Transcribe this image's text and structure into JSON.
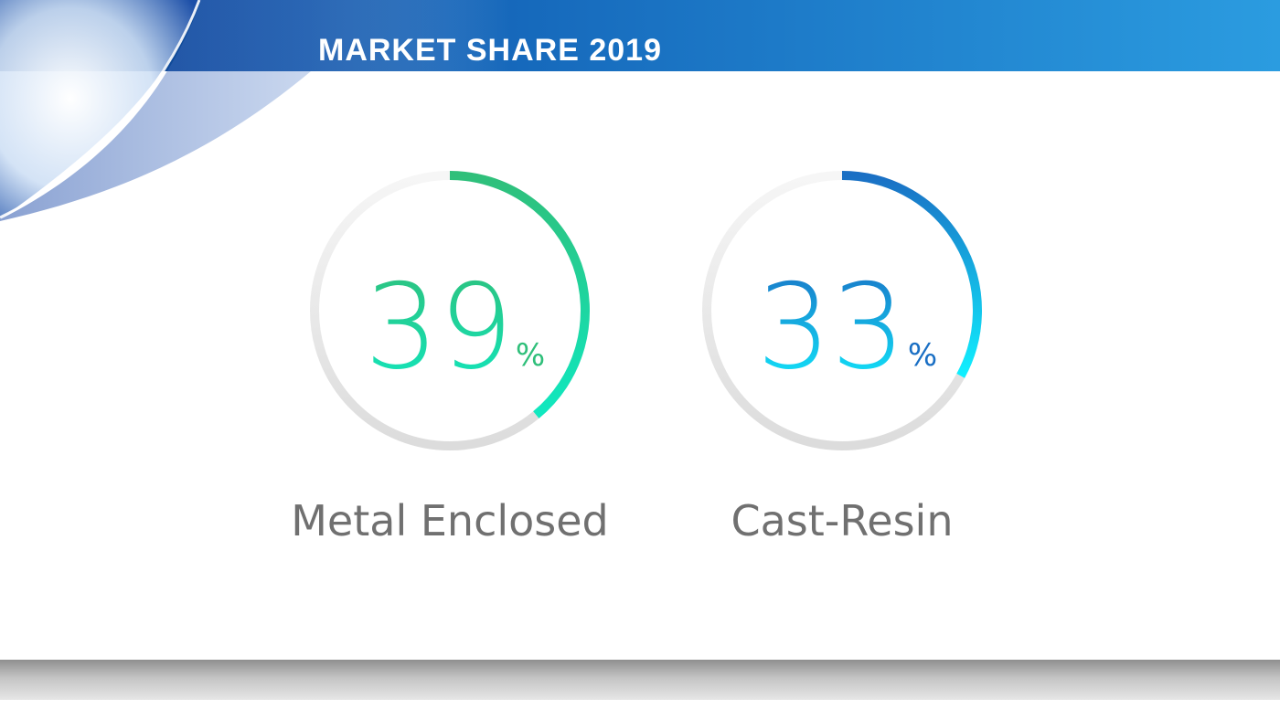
{
  "title": "MARKET SHARE 2019",
  "colors": {
    "header_dark": "#0c3a86",
    "header_light": "#2b9ce0",
    "track": "#dcdcdc",
    "label_text": "#707070"
  },
  "chart_data": [
    {
      "type": "pie",
      "label": "Metal Enclosed",
      "value": 39,
      "value_text": "39",
      "unit": "%",
      "max": 100,
      "gradient": [
        "#2fbf7a",
        "#10e8c0"
      ]
    },
    {
      "type": "pie",
      "label": "Cast-Resin",
      "value": 33,
      "value_text": "33",
      "unit": "%",
      "max": 100,
      "gradient": [
        "#1a6fc4",
        "#10f0ff"
      ]
    }
  ]
}
